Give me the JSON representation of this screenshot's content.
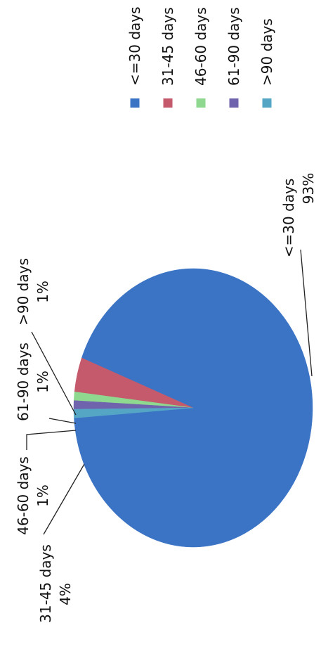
{
  "chart_data": {
    "type": "pie",
    "orientation": "rotated 90 degrees counter-clockwise",
    "legend_position": "top-right",
    "colors": {
      "<=30 days": "#3b74c5",
      "31-45 days": "#c45a6c",
      "46-60 days": "#8ed88f",
      "61-90 days": "#6f63ad",
      ">90 days": "#55a6c5"
    },
    "slices": [
      {
        "label": "<=30 days",
        "value": 93,
        "value_label": "93%",
        "color": "#3b74c5"
      },
      {
        "label": "31-45 days",
        "value": 4,
        "value_label": "4%",
        "color": "#c45a6c"
      },
      {
        "label": "46-60 days",
        "value": 1,
        "value_label": "1%",
        "color": "#8ed88f"
      },
      {
        "label": "61-90 days",
        "value": 1,
        "value_label": "1%",
        "color": "#6f63ad"
      },
      {
        "label": ">90 days",
        "value": 1,
        "value_label": "1%",
        "color": "#55a6c5"
      }
    ],
    "legend": [
      "<=30 days",
      "31-45 days",
      "46-60 days",
      "61-90 days",
      ">90 days"
    ]
  }
}
